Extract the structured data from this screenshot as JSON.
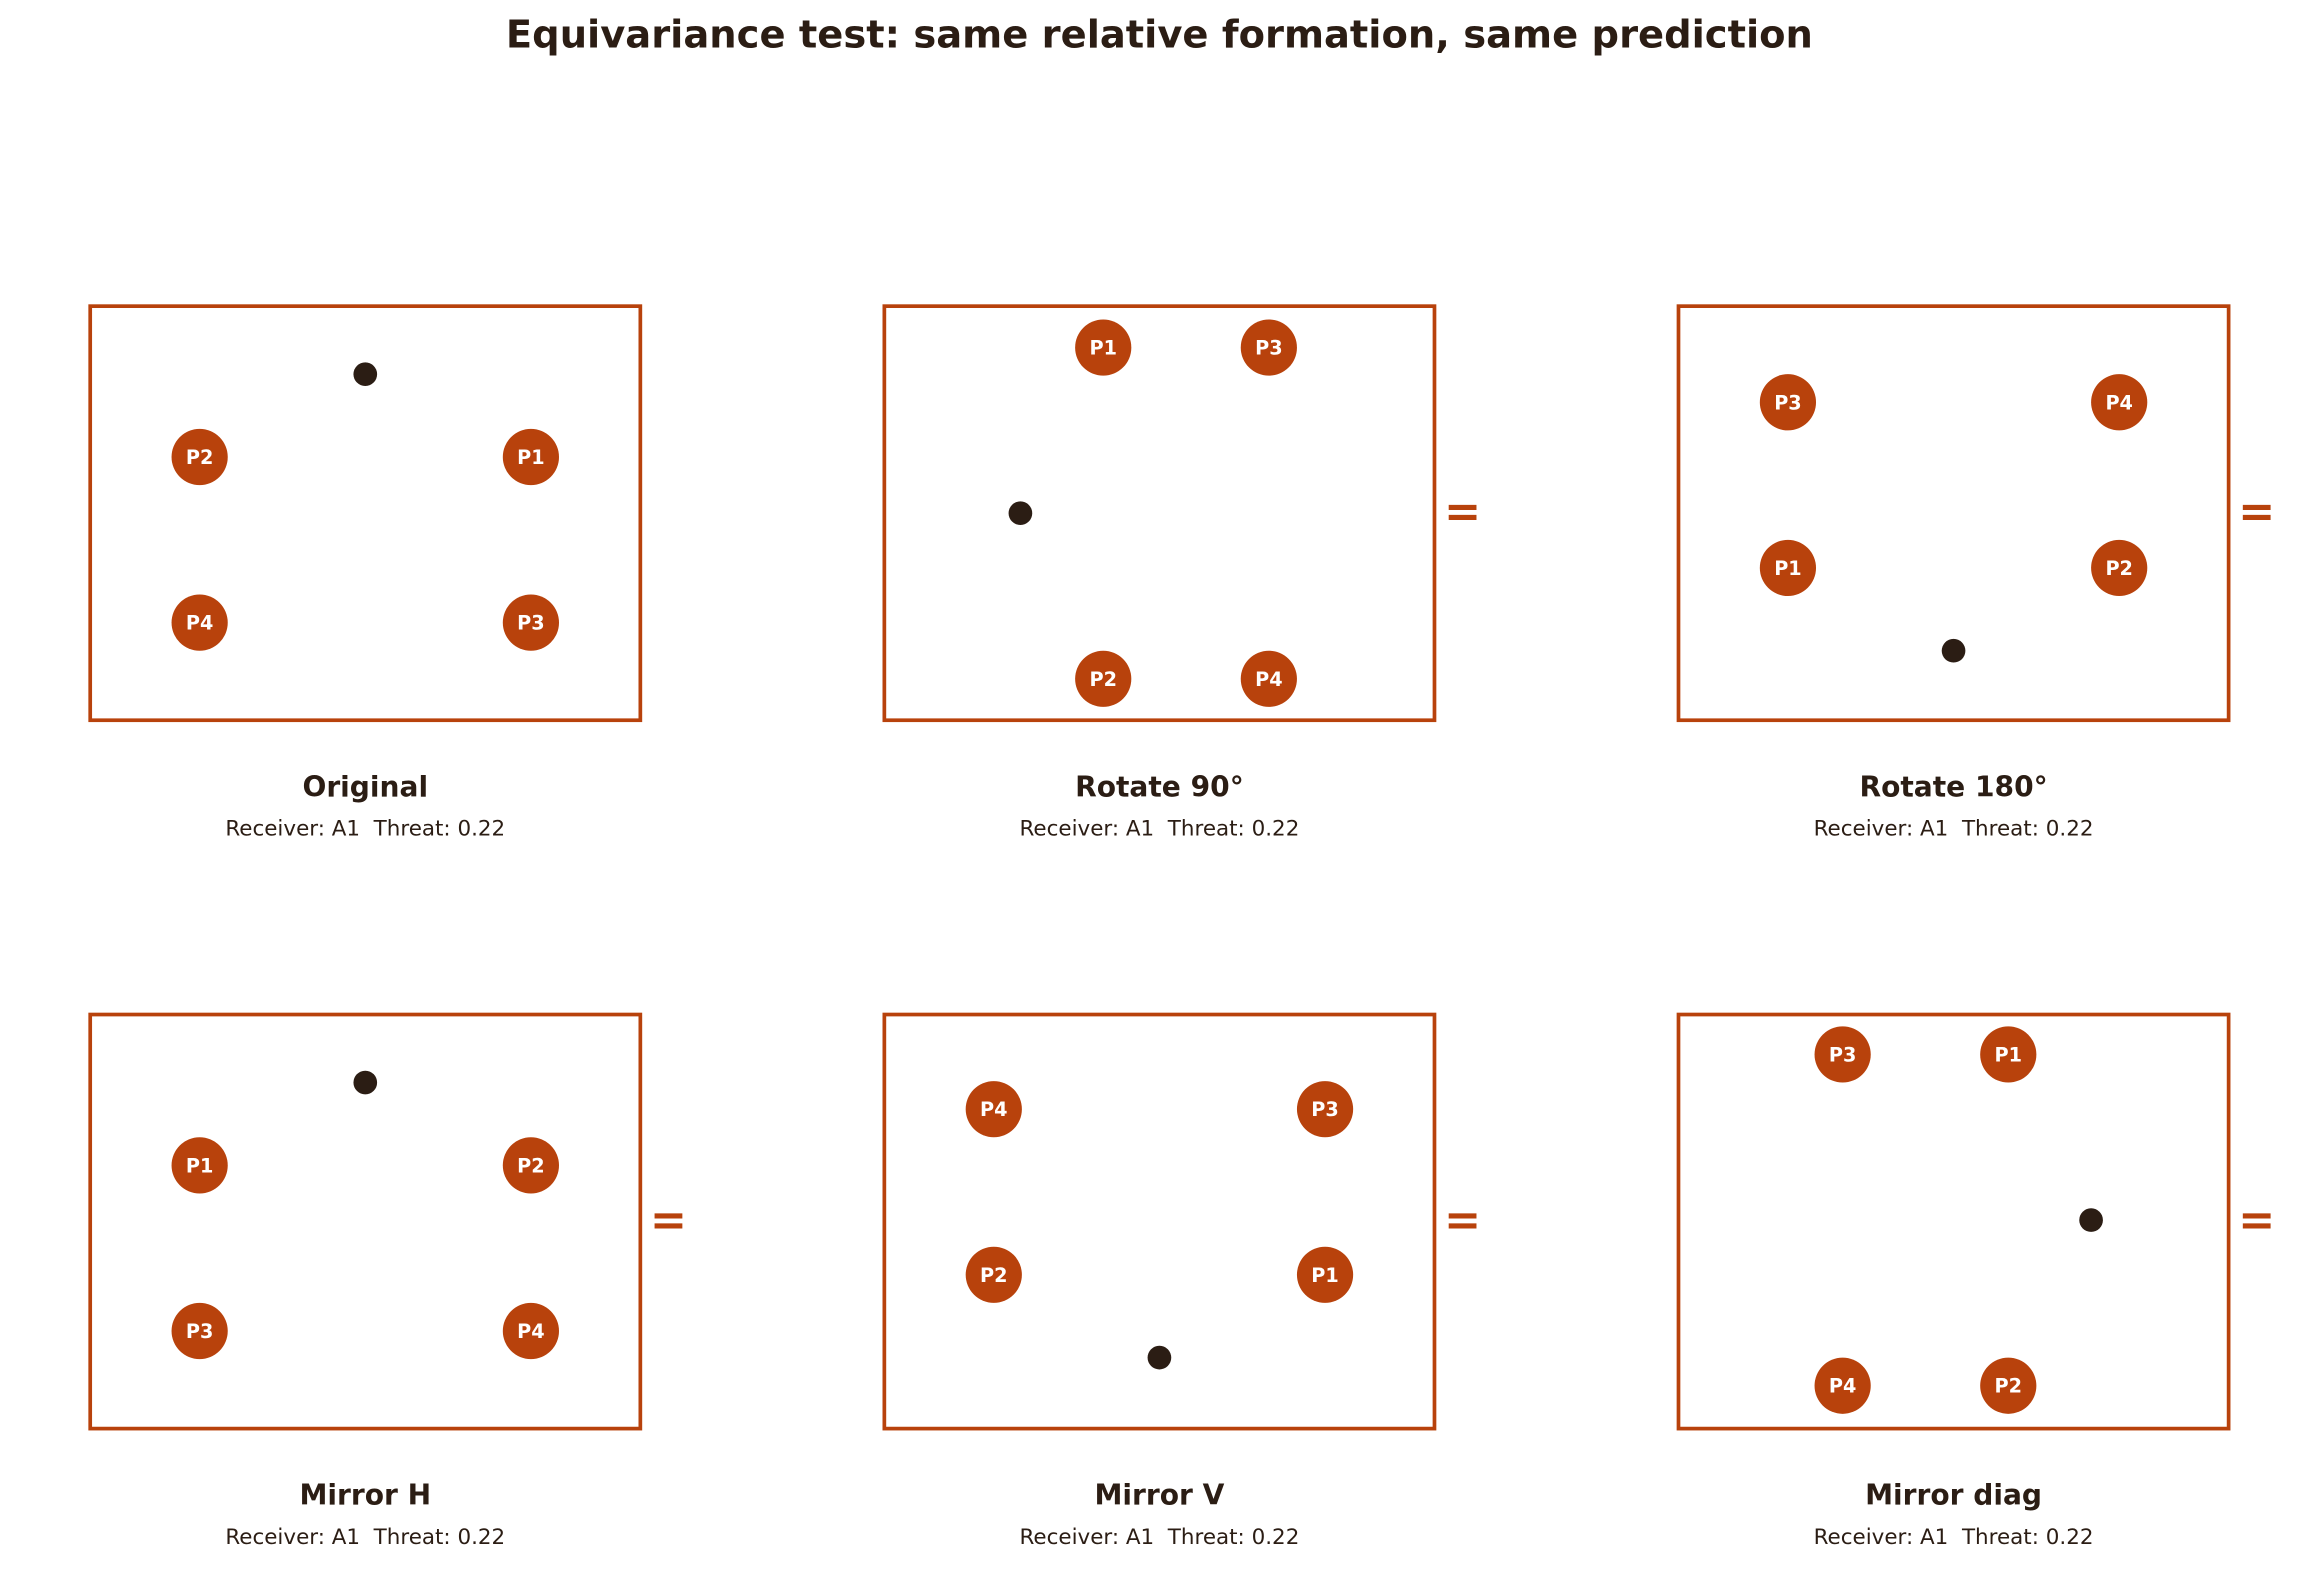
{
  "title": "Equivariance test: same relative formation, same prediction",
  "panels": [
    {
      "name": "Original",
      "caption": "Receiver: A1  Threat: 0.22",
      "players": [
        "P2",
        "P1",
        "P4",
        "P3"
      ]
    },
    {
      "name": "Rotate 90°",
      "caption": "Receiver: A1  Threat: 0.22",
      "players": [
        "P1",
        "P3",
        "P2",
        "P4"
      ],
      "equals": "="
    },
    {
      "name": "Rotate 180°",
      "caption": "Receiver: A1  Threat: 0.22",
      "players": [
        "P3",
        "P4",
        "P1",
        "P2"
      ],
      "equals": "="
    },
    {
      "name": "Mirror H",
      "caption": "Receiver: A1  Threat: 0.22",
      "players": [
        "P1",
        "P2",
        "P3",
        "P4"
      ],
      "equals": "="
    },
    {
      "name": "Mirror V",
      "caption": "Receiver: A1  Threat: 0.22",
      "players": [
        "P4",
        "P3",
        "P2",
        "P1"
      ],
      "equals": "="
    },
    {
      "name": "Mirror diag",
      "caption": "Receiver: A1  Threat: 0.22",
      "players": [
        "P3",
        "P1",
        "P4",
        "P2"
      ],
      "equals": "="
    }
  ]
}
